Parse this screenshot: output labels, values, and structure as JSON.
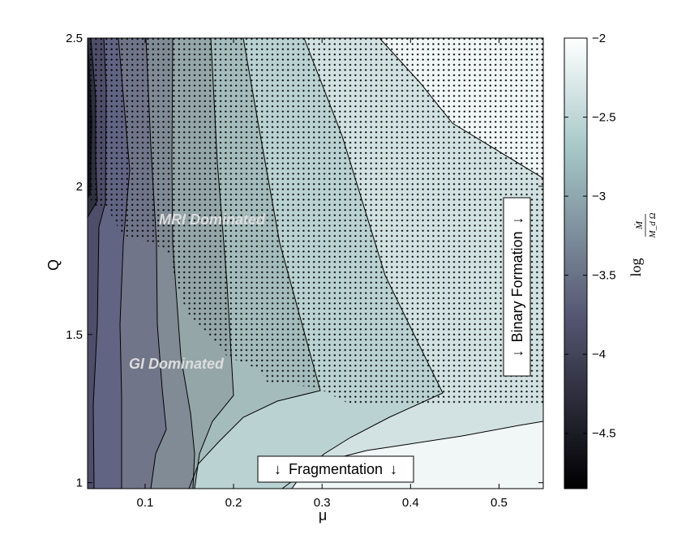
{
  "chart_data": {
    "type": "contour",
    "x_label": "μ",
    "y_label": "Q",
    "x_ticks": [
      0.1,
      0.2,
      0.3,
      0.4,
      0.5
    ],
    "y_ticks": [
      1,
      1.5,
      2,
      2.5
    ],
    "xlim": [
      0.035,
      0.55
    ],
    "ylim": [
      0.98,
      2.5
    ],
    "colorbar": {
      "label_main": "log",
      "label_num": "Ṁ",
      "label_den": "M_d Ω",
      "ticks": [
        -2,
        -2.5,
        -3,
        -3.5,
        -4,
        -4.5
      ],
      "range": [
        -4.85,
        -2.0
      ],
      "colormap": "bone"
    },
    "contour_levels": [
      -4.75,
      -4.5,
      -4.25,
      -4.0,
      -3.75,
      -3.5,
      -3.25,
      -3.0,
      -2.75,
      -2.5,
      -2.25
    ],
    "annotations": {
      "mri": "MRI Dominated",
      "gi": "GI Dominated",
      "fragmentation": "Fragmentation",
      "binary": "Binary Formation",
      "arrow": "↓"
    }
  }
}
